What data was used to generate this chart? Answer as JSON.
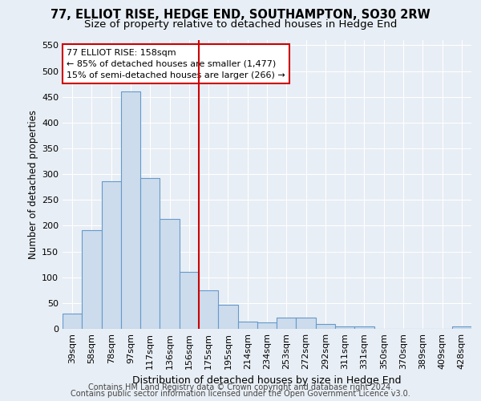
{
  "title": "77, ELLIOT RISE, HEDGE END, SOUTHAMPTON, SO30 2RW",
  "subtitle": "Size of property relative to detached houses in Hedge End",
  "xlabel": "Distribution of detached houses by size in Hedge End",
  "ylabel": "Number of detached properties",
  "categories": [
    "39sqm",
    "58sqm",
    "78sqm",
    "97sqm",
    "117sqm",
    "136sqm",
    "156sqm",
    "175sqm",
    "195sqm",
    "214sqm",
    "234sqm",
    "253sqm",
    "272sqm",
    "292sqm",
    "311sqm",
    "331sqm",
    "350sqm",
    "370sqm",
    "389sqm",
    "409sqm",
    "428sqm"
  ],
  "values": [
    30,
    192,
    287,
    460,
    293,
    213,
    110,
    75,
    46,
    14,
    13,
    22,
    22,
    9,
    5,
    5,
    0,
    0,
    0,
    0,
    5
  ],
  "bar_color": "#ccdcec",
  "bar_edge_color": "#6699cc",
  "vline_index": 6,
  "vline_color": "#cc0000",
  "annotation_text": "77 ELLIOT RISE: 158sqm\n← 85% of detached houses are smaller (1,477)\n15% of semi-detached houses are larger (266) →",
  "annotation_box_color": "#ffffff",
  "annotation_box_edge": "#cc0000",
  "footer_line1": "Contains HM Land Registry data © Crown copyright and database right 2024.",
  "footer_line2": "Contains public sector information licensed under the Open Government Licence v3.0.",
  "ylim": [
    0,
    560
  ],
  "yticks": [
    0,
    50,
    100,
    150,
    200,
    250,
    300,
    350,
    400,
    450,
    500,
    550
  ],
  "background_color": "#e8eef5",
  "grid_color": "#ffffff",
  "title_fontsize": 10.5,
  "subtitle_fontsize": 9.5,
  "xlabel_fontsize": 9,
  "ylabel_fontsize": 8.5,
  "tick_fontsize": 8,
  "footer_fontsize": 7,
  "annotation_fontsize": 8
}
